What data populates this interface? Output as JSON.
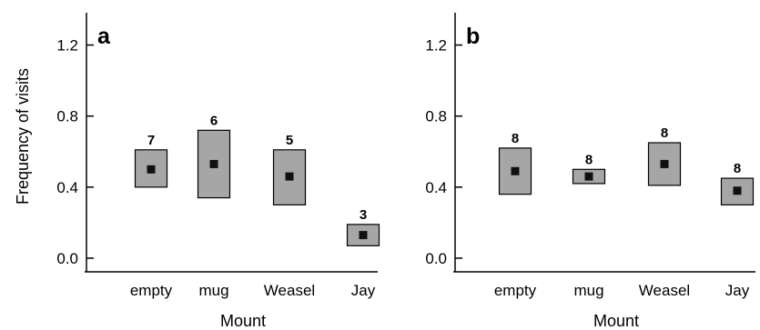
{
  "ylabel": "Frequency of visits",
  "chart_data": [
    {
      "type": "box",
      "panel": "a",
      "xlabel": "Mount",
      "ylabel": "Frequency of visits",
      "ylim": [
        0.0,
        1.3
      ],
      "yticks": [
        "0.0",
        "0.4",
        "0.8",
        "1.2"
      ],
      "categories": [
        "empty",
        "mug",
        "Weasel",
        "Jay"
      ],
      "series": [
        {
          "mean": [
            0.5,
            0.53,
            0.46,
            0.13
          ],
          "low": [
            0.4,
            0.34,
            0.3,
            0.07
          ],
          "high": [
            0.61,
            0.72,
            0.61,
            0.19
          ],
          "n": [
            "7",
            "6",
            "5",
            "3"
          ]
        }
      ]
    },
    {
      "type": "box",
      "panel": "b",
      "xlabel": "Mount",
      "ylabel": "",
      "ylim": [
        0.0,
        1.3
      ],
      "yticks": [
        "0.0",
        "0.4",
        "0.8",
        "1.2"
      ],
      "categories": [
        "empty",
        "mug",
        "Weasel",
        "Jay"
      ],
      "series": [
        {
          "mean": [
            0.49,
            0.46,
            0.53,
            0.38
          ],
          "low": [
            0.36,
            0.42,
            0.41,
            0.3
          ],
          "high": [
            0.62,
            0.5,
            0.65,
            0.45
          ],
          "n": [
            "8",
            "8",
            "8",
            "8"
          ]
        }
      ]
    }
  ]
}
